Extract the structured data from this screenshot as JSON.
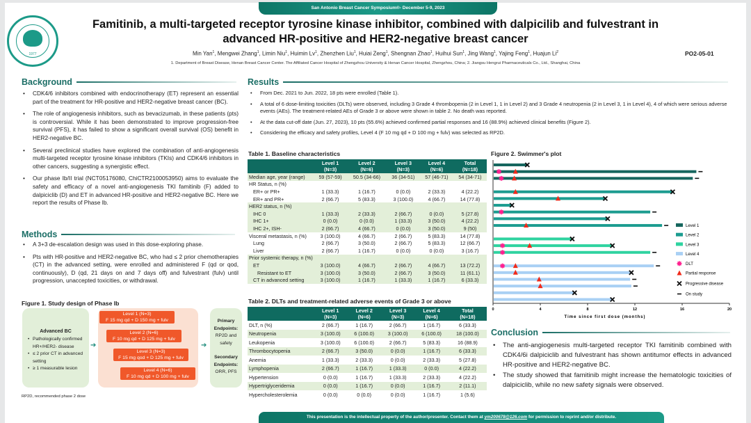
{
  "header": {
    "banner": "San Antonio Breast Cancer Symposium®- December 5-9, 2023",
    "title_line1": "Famitinib, a multi-targeted receptor tyrosine kinase inhibitor, combined with dalpicilib and fulvestrant in",
    "title_line2": "advanced HR-positive and HER2-negative breast cancer",
    "authors": [
      {
        "name": "Min Yan",
        "aff": "1"
      },
      {
        "name": "Mengwei Zhang",
        "aff": "1"
      },
      {
        "name": "Limin Niu",
        "aff": "1"
      },
      {
        "name": "Huimin Lv",
        "aff": "1"
      },
      {
        "name": "Zhenzhen Liu",
        "aff": "1"
      },
      {
        "name": "Huiai Zeng",
        "aff": "1"
      },
      {
        "name": "Shengnan Zhao",
        "aff": "1"
      },
      {
        "name": "Huihui Sun",
        "aff": "1"
      },
      {
        "name": "Jing Wang",
        "aff": "1"
      },
      {
        "name": "Yajing Feng",
        "aff": "1"
      },
      {
        "name": "Huajun Li",
        "aff": "2"
      }
    ],
    "affiliations": "1. Department of Breast Disease, Henan Breast Cancer Center. The Affiliated Cancer Hospital of Zhengzhou University & Henan Cancer Hospital, Zhengzhou, China; 2. Jiangsu Hengrui Pharmaceuticals Co., Ltd., Shanghai, China",
    "poster_code": "PO2-05-01",
    "logo_year": "1977"
  },
  "background": {
    "heading": "Background",
    "bullets": [
      "CDK4/6 inhibitors combined with endocrinotherapy (ET) represent an essential part of the treatment for HR-positive and HER2-negative breast cancer (BC).",
      "The role of angiogenesis inhibitors, such as bevacizumab, in these patients (pts) is controversial. While it has been demonstrated to improve progression-free survival (PFS), it has failed to show a significant overall survival (OS) benefit in HER2-negative BC.",
      "Several preclinical studies have explored the combination of anti-angiogenesis multi-targeted receptor tyrosine kinase inhibitors (TKIs) and CDK4/6 inhibitors in other cancers, suggesting a synergistic effect.",
      "Our phase Ib/II trial (NCT05176080, ChiCTR2100053950) aims to evaluate the safety and efficacy of a novel anti-angiogenesis TKI famitinib (F) added to dalpiciclib (D) and ET in advanced HR-positive and HER2-negative BC. Here we report the results of Phase Ib."
    ]
  },
  "methods": {
    "heading": "Methods",
    "bullets": [
      "A 3+3 de-escalation design was used in this dose-exploring phase.",
      "Pts with HR-positive and HER2-negative BC, who had ≤ 2 prior chemotherapies (CT) in the advanced setting, were enrolled and administered F (qd or qod, continuously), D (qd, 21 days on and 7 days off) and fulvestrant (fulv) until progression, unaccepted toxicities, or withdrawal."
    ]
  },
  "figure1": {
    "title": "Figure 1. Study design of Phase Ib",
    "population": {
      "heading": "Advanced BC",
      "items": [
        "Pathologically confirmed HR+/HER2- disease",
        "≤ 2 prior CT in advanced setting",
        "≥ 1 measurable lesion"
      ]
    },
    "levels": [
      {
        "name": "Level 1 (N=3)",
        "dose": "F 15 mg qd + D 150 mg + fulv"
      },
      {
        "name": "Level 2 (N=6)",
        "dose": "F 10 mg qd + D 125 mg + fulv"
      },
      {
        "name": "Level 3 (N=3)",
        "dose": "F 15 mg qod + D 125 mg + fulv"
      },
      {
        "name": "Level 4 (N=6)",
        "dose": "F 10 mg qd + D 100 mg + fulv"
      }
    ],
    "primary_label": "Primary Endpoints:",
    "primary_value": "RP2D and safety",
    "secondary_label": "Secondary Endpoints:",
    "secondary_value": "ORR, PFS",
    "footnote": "RP2D, recommended phase 2 dose"
  },
  "results": {
    "heading": "Results",
    "bullets": [
      "From Dec. 2021 to Jun. 2022, 18 pts were enrolled (Table 1).",
      "A total of 6 dose-limiting toxicities (DLTs) were observed, including 3 Grade 4 thrombopenia (2 in Level 1, 1 in Level 2) and 3 Grade 4 neutropenia (2 in Level 3, 1 in Level 4), 4 of which were serious adverse events (AEs). The treatment-related AEs of Grade 3 or above were shown in table 2. No death was reported.",
      "At the data cut-off date (Jun. 27, 2023), 10 pts (55.6%) achieved confirmed partial responses and 16 (88.9%) achieved clinical benefits (Figure 2).",
      "Considering the efficacy and safety profiles, Level 4 (F 10 mg qd + D 100 mg + fulv) was selected as RP2D."
    ]
  },
  "table1": {
    "title": "Table 1. Baseline characteristics",
    "columns": [
      [
        "Level 1",
        "(N=3)"
      ],
      [
        "Level 2",
        "(N=6)"
      ],
      [
        "Level 3",
        "(N=3)"
      ],
      [
        "Level 4",
        "(N=6)"
      ],
      [
        "Total",
        "(N=18)"
      ]
    ],
    "rows": [
      {
        "label": "Median age, year (range)",
        "values": [
          "59 (57-59)",
          "50.5 (34-66)",
          "36 (34-51)",
          "57 (46-71)",
          "54 (34-71)"
        ],
        "shade": true
      },
      {
        "label": "HR Status, n (%)",
        "values": [
          "",
          "",
          "",
          "",
          ""
        ],
        "shade": false
      },
      {
        "label": "ER+ or PR+",
        "indent": 1,
        "values": [
          "1 (33.3)",
          "1 (16.7)",
          "0 (0.0)",
          "2 (33.3)",
          "4 (22.2)"
        ],
        "shade": false
      },
      {
        "label": "ER+ and PR+",
        "indent": 1,
        "values": [
          "2 (66.7)",
          "5 (83.3)",
          "3 (100.0)",
          "4 (66.7)",
          "14 (77.8)"
        ],
        "shade": false
      },
      {
        "label": "HER2 status, n (%)",
        "values": [
          "",
          "",
          "",
          "",
          ""
        ],
        "shade": true
      },
      {
        "label": "IHC 0",
        "indent": 1,
        "values": [
          "1 (33.3)",
          "2 (33.3)",
          "2 (66.7)",
          "0 (0.0)",
          "5 (27.8)"
        ],
        "shade": true
      },
      {
        "label": "IHC 1+",
        "indent": 1,
        "values": [
          "0 (0.0)",
          "0 (0.0)",
          "1 (33.3)",
          "3 (50.0)",
          "4 (22.2)"
        ],
        "shade": true
      },
      {
        "label": "IHC 2+,  ISH-",
        "indent": 1,
        "values": [
          "2 (66.7)",
          "4 (66.7)",
          "0 (0.0)",
          "3 (50.0)",
          "9 (50)"
        ],
        "shade": true
      },
      {
        "label": "Visceral metastasis, n (%)",
        "values": [
          "3 (100.0)",
          "4 (66.7)",
          "2 (66.7)",
          "5 (83.3)",
          "14 (77.8)"
        ],
        "shade": false
      },
      {
        "label": "Lung",
        "indent": 1,
        "values": [
          "2 (66.7)",
          "3 (50.0)",
          "2 (66.7)",
          "5 (83.3)",
          "12 (66.7)"
        ],
        "shade": false
      },
      {
        "label": "Liver",
        "indent": 1,
        "values": [
          "2 (66.7)",
          "1 (16.7)",
          "0 (0.0)",
          "0 (0.0)",
          "3 (16.7)"
        ],
        "shade": false
      },
      {
        "label": "Prior systemic therapy, n (%)",
        "values": [
          "",
          "",
          "",
          "",
          ""
        ],
        "shade": true
      },
      {
        "label": "ET",
        "indent": 1,
        "values": [
          "3 (100.0)",
          "4 (66.7)",
          "2 (66.7)",
          "4 (66.7)",
          "13 (72.2)"
        ],
        "shade": true
      },
      {
        "label": "Resistant to ET",
        "indent": 2,
        "values": [
          "3 (100.0)",
          "3 (50.0)",
          "2 (66.7)",
          "3 (50.0)",
          "11 (61.1)"
        ],
        "shade": true
      },
      {
        "label": "CT in advanced setting",
        "indent": 1,
        "values": [
          "3 (100.0)",
          "1 (16.7)",
          "1 (33.3)",
          "1 (16.7)",
          "6 (33.3)"
        ],
        "shade": true
      }
    ]
  },
  "table2": {
    "title": "Table 2. DLTs and treatment-related adverse events of Grade 3 or above",
    "columns": [
      [
        "Level 1",
        "(N=3)"
      ],
      [
        "Level 2",
        "(N=6)"
      ],
      [
        "Level 3",
        "(N=3)"
      ],
      [
        "Level 4",
        "(N=6)"
      ],
      [
        "Total",
        "(N=18)"
      ]
    ],
    "rows": [
      {
        "label": "DLT, n (%)",
        "values": [
          "2 (66.7)",
          "1 (16.7)",
          "2 (66.7)",
          "1 (16.7)",
          "6 (33.3)"
        ],
        "shade": false
      },
      {
        "label": "Neutropenia",
        "values": [
          "3 (100.0)",
          "6 (100.0)",
          "3 (100.0)",
          "6 (100.0)",
          "18 (100.0)"
        ],
        "shade": true
      },
      {
        "label": "Leukopenia",
        "values": [
          "3 (100.0)",
          "6 (100.0)",
          "2 (66.7)",
          "5 (83.3)",
          "16 (88.9)"
        ],
        "shade": false
      },
      {
        "label": "Thrombocytopenia",
        "values": [
          "2 (66.7)",
          "3 (50.0)",
          "0 (0.0)",
          "1 (16.7)",
          "6 (33.3)"
        ],
        "shade": true
      },
      {
        "label": "Anemia",
        "values": [
          "1 (33.3)",
          "2 (33.3)",
          "0 (0.0)",
          "2 (33.3)",
          "5 (27.8)"
        ],
        "shade": false
      },
      {
        "label": "Lymphopenia",
        "values": [
          "2 (66.7)",
          "1 (16.7)",
          "1 (33.3)",
          "0 (0.0)",
          "4 (22.2)"
        ],
        "shade": true
      },
      {
        "label": "Hypertension",
        "values": [
          "0 (0.0)",
          "1 (16.7)",
          "1 (33.3)",
          "2 (33.3)",
          "4 (22.2)"
        ],
        "shade": false
      },
      {
        "label": "Hypertriglyceridemia",
        "values": [
          "0 (0.0)",
          "1 (16.7)",
          "0 (0.0)",
          "1 (16.7)",
          "2 (11.1)"
        ],
        "shade": true
      },
      {
        "label": "Hypercholesterolemia",
        "values": [
          "0 (0.0)",
          "0 (0.0)",
          "0 (0.0)",
          "1 (16.7)",
          "1 (5.6)"
        ],
        "shade": false
      }
    ]
  },
  "chart_data": {
    "type": "bar",
    "orientation": "horizontal",
    "subtype": "swimmer",
    "title": "Figure 2. Swimmer's plot",
    "xlabel": "Time since first dose (months)",
    "xlim": [
      0,
      20
    ],
    "xticks": [
      0,
      4,
      8,
      12,
      16,
      20
    ],
    "grid": false,
    "legend_position": "right",
    "series": [
      {
        "name": "Level 1",
        "color": "#16665e"
      },
      {
        "name": "Level 2",
        "color": "#1c9c90"
      },
      {
        "name": "Level 3",
        "color": "#2fd3a0"
      },
      {
        "name": "Level 4",
        "color": "#a9d0f4"
      }
    ],
    "markers": [
      {
        "name": "DLT",
        "color": "#ff1f8f"
      },
      {
        "name": "Partial response",
        "color": "#f02a1a"
      },
      {
        "name": "Progressive disease",
        "color": "#111111"
      },
      {
        "name": "On study",
        "color": "#111111"
      }
    ],
    "patients": [
      {
        "level": 1,
        "duration": 2.9,
        "dlt": null,
        "pr": null,
        "end": "PD"
      },
      {
        "level": 1,
        "duration": 17.2,
        "dlt": 0.5,
        "pr": 1.9,
        "end": "On study"
      },
      {
        "level": 1,
        "duration": 16.9,
        "dlt": 0.7,
        "pr": 1.8,
        "end": "On study"
      },
      {
        "level": 2,
        "duration": 15.2,
        "dlt": null,
        "pr": 1.9,
        "end": "PD"
      },
      {
        "level": 2,
        "duration": 9.5,
        "dlt": null,
        "pr": 5.5,
        "end": "PD"
      },
      {
        "level": 2,
        "duration": 1.6,
        "dlt": null,
        "pr": null,
        "end": "PD"
      },
      {
        "level": 2,
        "duration": 13.3,
        "dlt": 0.7,
        "pr": null,
        "end": "On study"
      },
      {
        "level": 2,
        "duration": 9.7,
        "dlt": null,
        "pr": null,
        "end": "PD"
      },
      {
        "level": 2,
        "duration": 14.3,
        "dlt": null,
        "pr": 2.8,
        "end": "On study"
      },
      {
        "level": 3,
        "duration": 6.7,
        "dlt": null,
        "pr": null,
        "end": "PD"
      },
      {
        "level": 3,
        "duration": 10.1,
        "dlt": 0.8,
        "pr": 3.1,
        "end": "PD"
      },
      {
        "level": 3,
        "duration": 13.3,
        "dlt": 0.8,
        "pr": null,
        "end": "On study"
      },
      {
        "level": 4,
        "duration": 13.6,
        "dlt": 0.8,
        "pr": 1.9,
        "end": "On study"
      },
      {
        "level": 4,
        "duration": 11.7,
        "dlt": null,
        "pr": 1.9,
        "end": "PD"
      },
      {
        "level": 4,
        "duration": 11.6,
        "dlt": null,
        "pr": 3.9,
        "end": "On study"
      },
      {
        "level": 4,
        "duration": 11.7,
        "dlt": null,
        "pr": 4.0,
        "end": "On study"
      },
      {
        "level": 4,
        "duration": 6.9,
        "dlt": null,
        "pr": null,
        "end": "PD"
      },
      {
        "level": 4,
        "duration": 10.1,
        "dlt": null,
        "pr": null,
        "end": "PD"
      }
    ]
  },
  "conclusion": {
    "heading": "Conclusion",
    "bullets": [
      "The anti-angiogenesis multi-targeted receptor TKI famitinib combined with CDK4/6i dalpiciclib and fulvestrant has shown antitumor effects in advanced HR-positive and HER2-negative BC.",
      "The study showed that famitinib might increase the hematologic toxicities of dalpiciclib, while no new safety signals were observed."
    ]
  },
  "footer": {
    "text_before": "This presentation is the intellectual property of the author/presenter. Contact them at ",
    "email": "ym200678@126.com",
    "text_after": " for permission to reprint and/or distribute."
  },
  "colors": {
    "accent": "#1b6e66",
    "table_header": "#0f6b60",
    "row_shade": "#e3efd9",
    "level_box": "#f0582a"
  }
}
